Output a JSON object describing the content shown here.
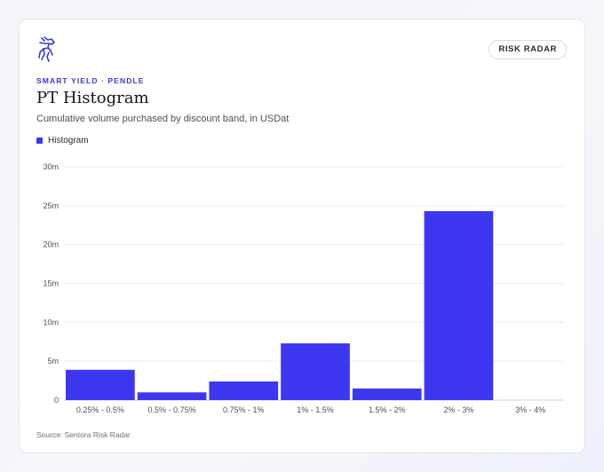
{
  "badge": "RISK RADAR",
  "eyebrow": "SMART YIELD · PENDLE",
  "title": "PT Histogram",
  "subtitle": "Cumulative volume purchased by discount band, in USDat",
  "source": "Source: Sentora Risk Radar",
  "colors": {
    "bar": "#3d38f0",
    "accent": "#3a37d6",
    "grid": "#ececf0"
  },
  "icons": {
    "logo": "horse-logo-icon"
  },
  "chart_data": {
    "type": "bar",
    "categories": [
      "0.25% - 0.5%",
      "0.5% - 0.75%",
      "0.75% - 1%",
      "1% - 1.5%",
      "1.5% - 2%",
      "2% - 3%",
      "3% - 4%"
    ],
    "series": [
      {
        "name": "Histogram",
        "values": [
          3.9,
          1.0,
          2.4,
          7.3,
          1.5,
          24.3,
          0
        ]
      }
    ],
    "yticks": [
      "0",
      "5m",
      "10m",
      "15m",
      "20m",
      "25m",
      "30m"
    ],
    "ylim": [
      0,
      30
    ],
    "unit": "m",
    "grid": true,
    "legend": "top-left"
  }
}
